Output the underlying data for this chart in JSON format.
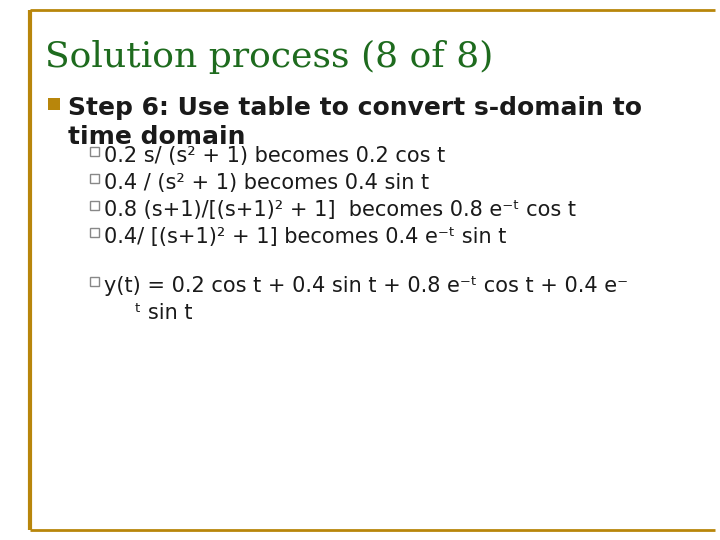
{
  "title": "Solution process (8 of 8)",
  "title_color": "#1e6b1e",
  "title_fontsize": 26,
  "background_color": "#ffffff",
  "border_color": "#b8860b",
  "step_text_line1": "Step 6: Use table to convert s-domain to",
  "step_text_line2": "time domain",
  "step_fontsize": 18,
  "sub_fontsize": 15,
  "main_bullet_color": "#b8860b",
  "sub_bullet_edge_color": "#888888",
  "text_color": "#1a1a1a",
  "sub_bullets": [
    "0.2 s/ (s² + 1) becomes 0.2 cos t",
    "0.4 / (s² + 1) becomes 0.4 sin t",
    "0.8 (s+1)/[(s+1)² + 1]  becomes 0.8 e⁻ᵗ cos t",
    "0.4/ [(s+1)² + 1] becomes 0.4 e⁻ᵗ sin t"
  ],
  "final_line1": "y(t) = 0.2 cos t + 0.4 sin t + 0.8 e⁻ᵗ cos t + 0.4 e⁻",
  "final_line2": "ᵗ sin t"
}
